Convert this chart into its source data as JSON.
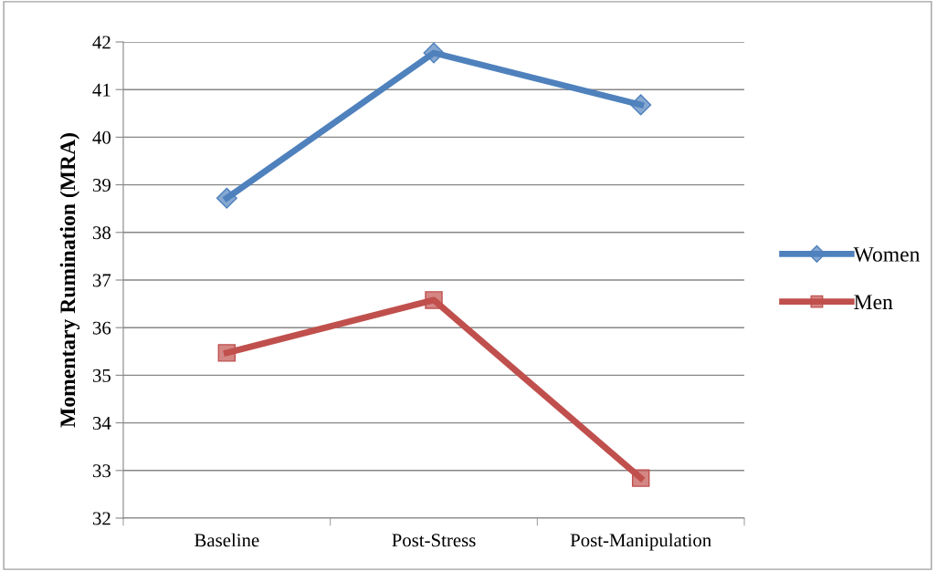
{
  "chart_data": {
    "type": "line",
    "ylabel": "Momentary Rumination (MRA)",
    "categories": [
      "Baseline",
      "Post-Stress",
      "Post-Manipulation"
    ],
    "series": [
      {
        "name": "Women",
        "color": "#4f81bd",
        "values": [
          38.72,
          41.77,
          40.68
        ],
        "marker": "diamond"
      },
      {
        "name": "Men",
        "color": "#c0504d",
        "values": [
          35.47,
          36.58,
          32.84
        ],
        "marker": "square"
      }
    ],
    "ylim": [
      32,
      42
    ],
    "yticks": [
      32,
      33,
      34,
      35,
      36,
      37,
      38,
      39,
      40,
      41,
      42
    ],
    "grid": "y",
    "legend": "right",
    "line_style": "solid"
  }
}
